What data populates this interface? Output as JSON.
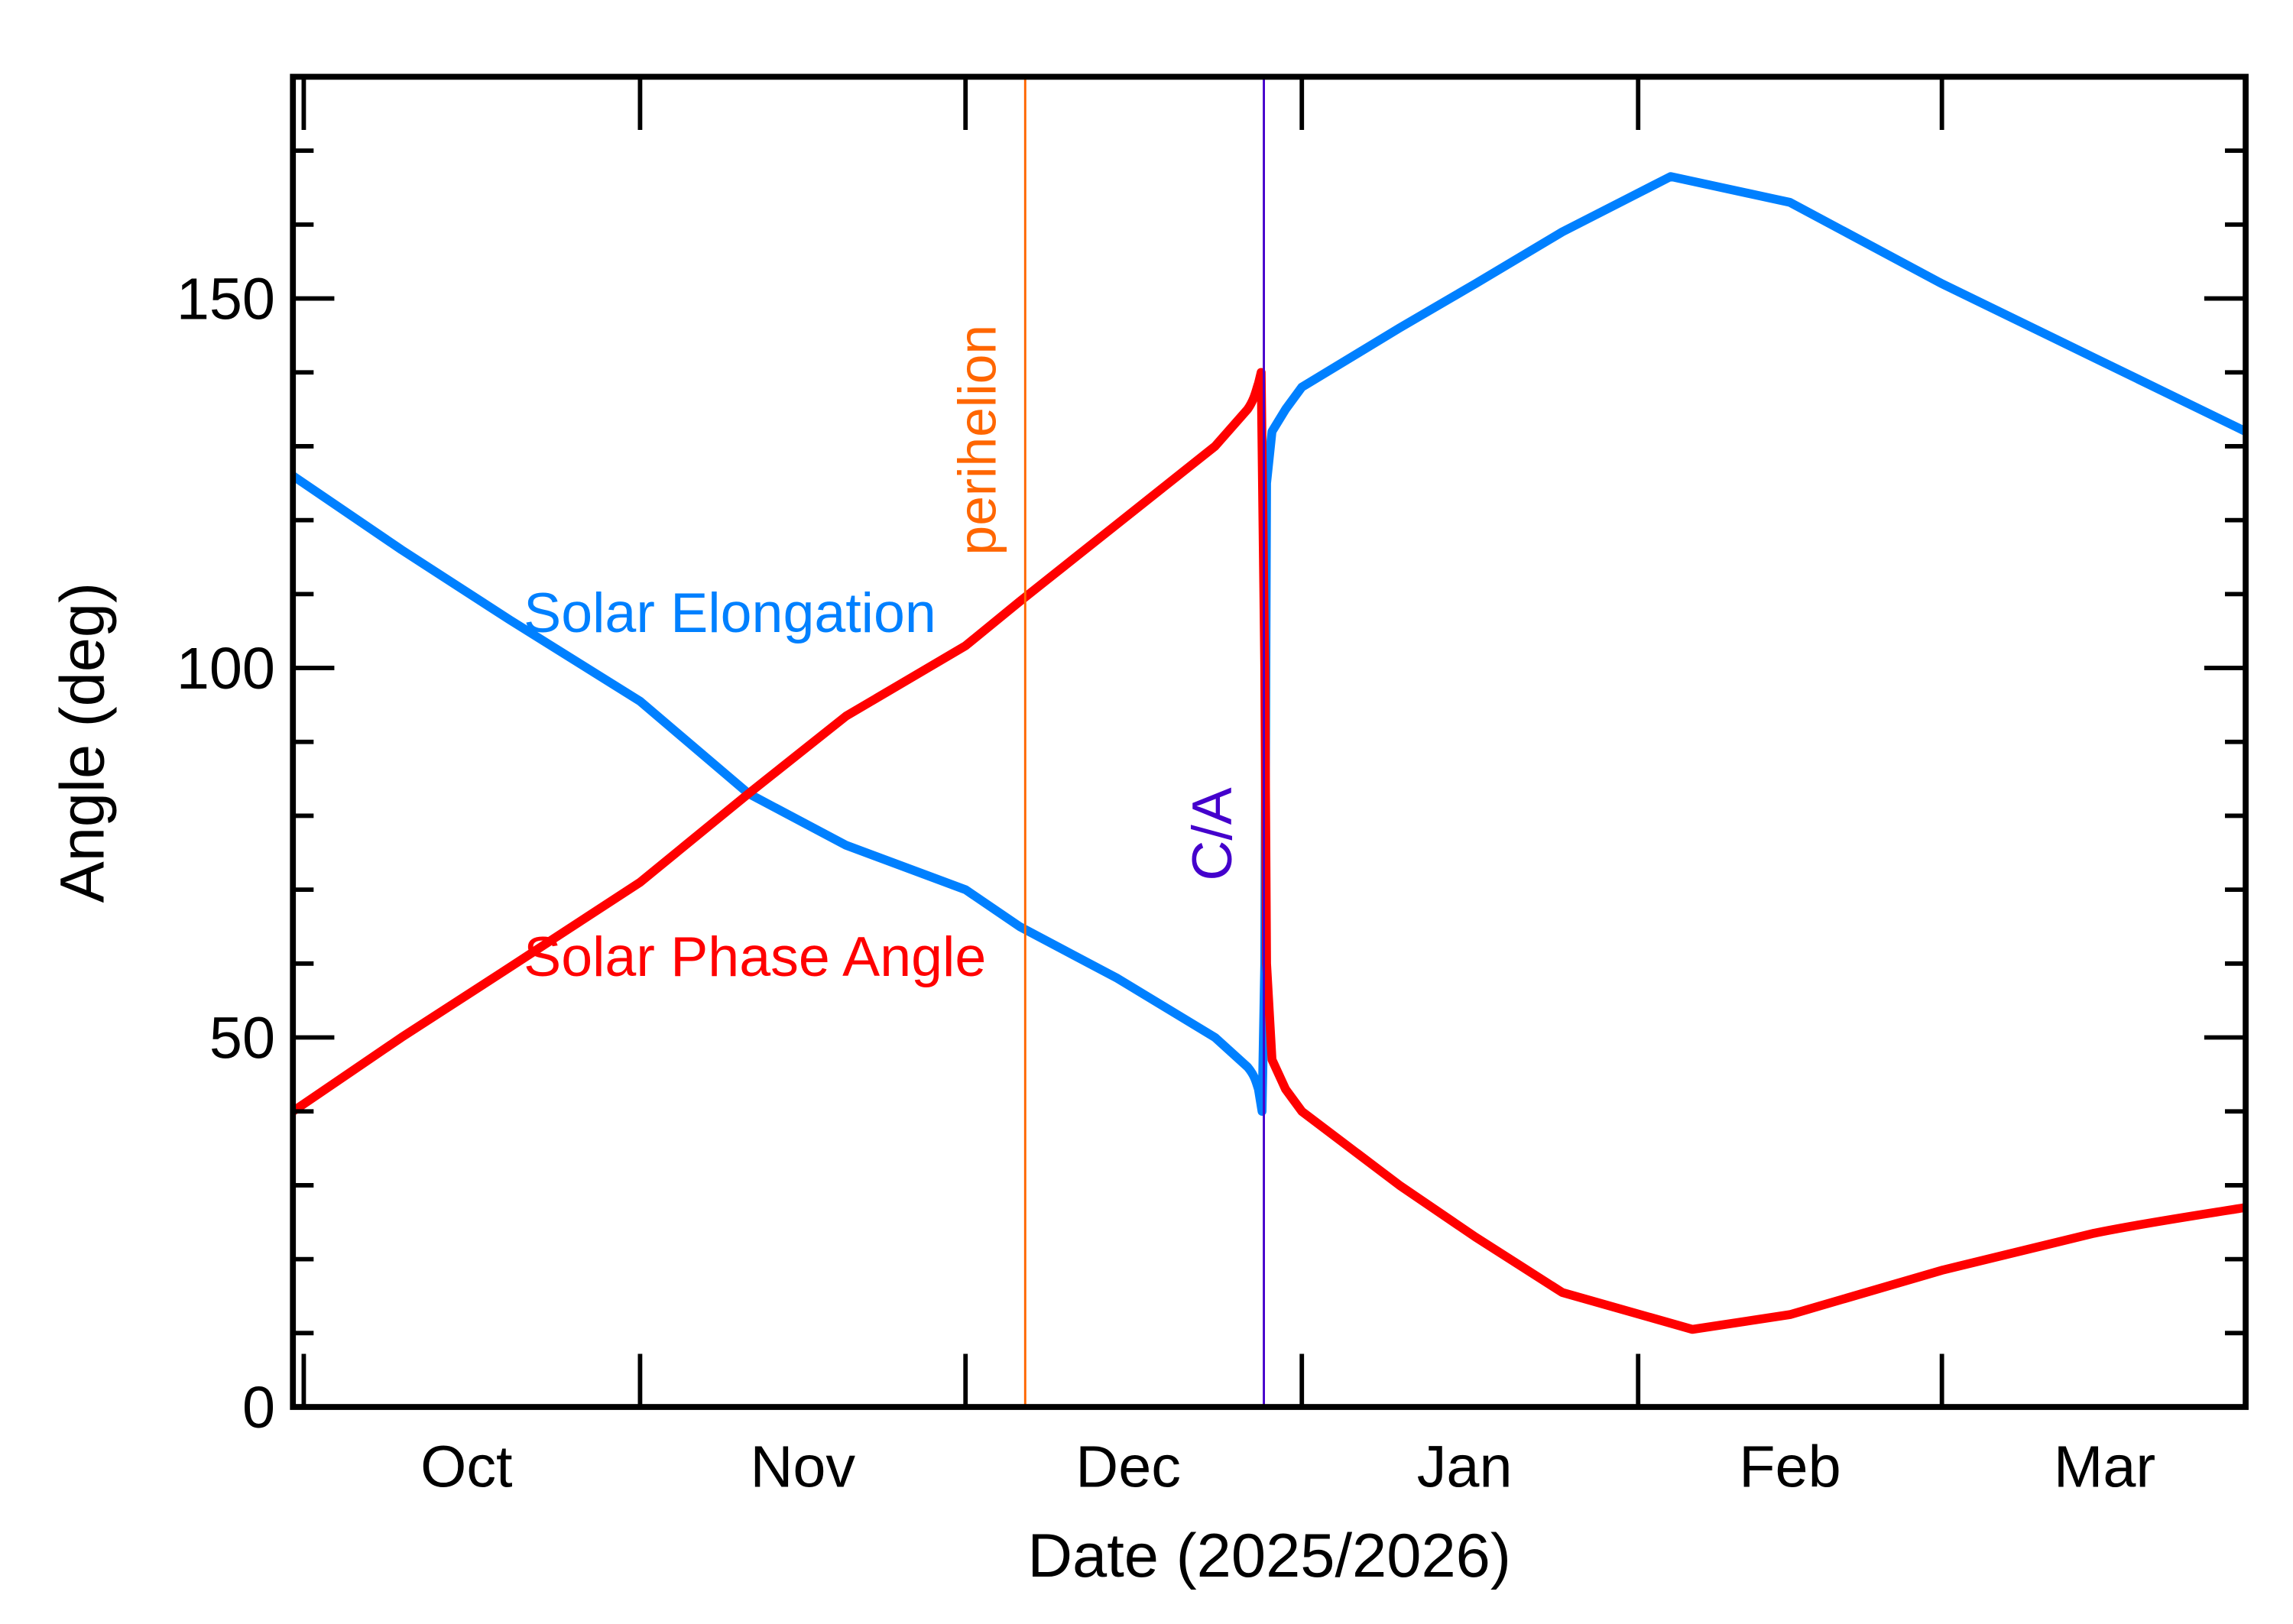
{
  "chart_data": {
    "type": "line",
    "title": "",
    "xlabel": "Date (2025/2026)",
    "ylabel": "Angle (deg)",
    "xlim": [
      "2025-09-30T00:00",
      "2026-03-29T00:00"
    ],
    "ylim": [
      0,
      180
    ],
    "grid": false,
    "y_ticks": [
      0,
      50,
      100,
      150
    ],
    "y_tick_labels": [
      "0",
      "50",
      "100",
      "150"
    ],
    "y_minor_step": 10,
    "x_ticks": [
      "2025-10-01",
      "2025-11-01",
      "2025-12-01",
      "2026-01-01",
      "2026-02-01",
      "2026-03-01"
    ],
    "x_month_labels": [
      {
        "label": "Oct",
        "date": "2025-10-16"
      },
      {
        "label": "Nov",
        "date": "2025-11-16"
      },
      {
        "label": "Dec",
        "date": "2025-12-16"
      },
      {
        "label": "Jan",
        "date": "2026-01-16"
      },
      {
        "label": "Feb",
        "date": "2026-02-15"
      },
      {
        "label": "Mar",
        "date": "2026-03-16"
      }
    ],
    "series": [
      {
        "name": "Solar Elongation",
        "color": "#0080ff",
        "points": [
          [
            "2025-09-30T00:00",
            126
          ],
          [
            "2025-10-10T00:00",
            116
          ],
          [
            "2025-10-20T00:00",
            106.5
          ],
          [
            "2025-11-01T00:00",
            95.5
          ],
          [
            "2025-11-11T00:00",
            83
          ],
          [
            "2025-11-20T00:00",
            76
          ],
          [
            "2025-12-01T00:00",
            70
          ],
          [
            "2025-12-06T00:00",
            65
          ],
          [
            "2025-12-15T00:00",
            58
          ],
          [
            "2025-12-24T00:00",
            50
          ],
          [
            "2025-12-27T00:00",
            46
          ],
          [
            "2025-12-28T00:00",
            43
          ],
          [
            "2025-12-28T08:00",
            40
          ],
          [
            "2025-12-28T14:00",
            60
          ],
          [
            "2025-12-28T18:00",
            125
          ],
          [
            "2025-12-29T06:00",
            132
          ],
          [
            "2025-12-30T12:00",
            135
          ],
          [
            "2026-01-01T00:00",
            138
          ],
          [
            "2026-01-10T00:00",
            146
          ],
          [
            "2026-01-17T00:00",
            152
          ],
          [
            "2026-01-25T00:00",
            159
          ],
          [
            "2026-02-04T00:00",
            166.5
          ],
          [
            "2026-02-15T00:00",
            163
          ],
          [
            "2026-03-01T00:00",
            152
          ],
          [
            "2026-03-15T00:00",
            142
          ],
          [
            "2026-03-29T00:00",
            132
          ]
        ]
      },
      {
        "name": "Solar Phase Angle",
        "color": "#ff0000",
        "points": [
          [
            "2025-09-30T00:00",
            40
          ],
          [
            "2025-10-10T00:00",
            50
          ],
          [
            "2025-10-20T00:00",
            59.5
          ],
          [
            "2025-11-01T00:00",
            71
          ],
          [
            "2025-11-11T00:00",
            83
          ],
          [
            "2025-11-20T00:00",
            93.5
          ],
          [
            "2025-12-01T00:00",
            103
          ],
          [
            "2025-12-06T00:00",
            109
          ],
          [
            "2025-12-15T00:00",
            119.5
          ],
          [
            "2025-12-24T00:00",
            130
          ],
          [
            "2025-12-27T00:00",
            135
          ],
          [
            "2025-12-28T00:00",
            138.5
          ],
          [
            "2025-12-28T06:00",
            140
          ],
          [
            "2025-12-28T10:00",
            120
          ],
          [
            "2025-12-28T14:00",
            100
          ],
          [
            "2025-12-28T18:00",
            60
          ],
          [
            "2025-12-29T06:00",
            47
          ],
          [
            "2025-12-30T12:00",
            43
          ],
          [
            "2026-01-01T00:00",
            40
          ],
          [
            "2026-01-10T00:00",
            30
          ],
          [
            "2026-01-17T00:00",
            23
          ],
          [
            "2026-01-25T00:00",
            15.5
          ],
          [
            "2026-02-06T00:00",
            10.5
          ],
          [
            "2026-02-15T00:00",
            12.5
          ],
          [
            "2026-03-01T00:00",
            18.5
          ],
          [
            "2026-03-15T00:00",
            23.5
          ],
          [
            "2026-03-29T00:00",
            27
          ]
        ]
      }
    ],
    "annotations": [
      {
        "text": "perihelion",
        "date": "2025-12-06T12:00",
        "color": "#ff6600"
      },
      {
        "text": "C/A",
        "date": "2025-12-28T12:00",
        "color": "#4400cc"
      }
    ],
    "series_labels": [
      {
        "text": "Solar Elongation",
        "color": "#0080ff"
      },
      {
        "text": "Solar Phase Angle",
        "color": "#ff0000"
      }
    ]
  }
}
